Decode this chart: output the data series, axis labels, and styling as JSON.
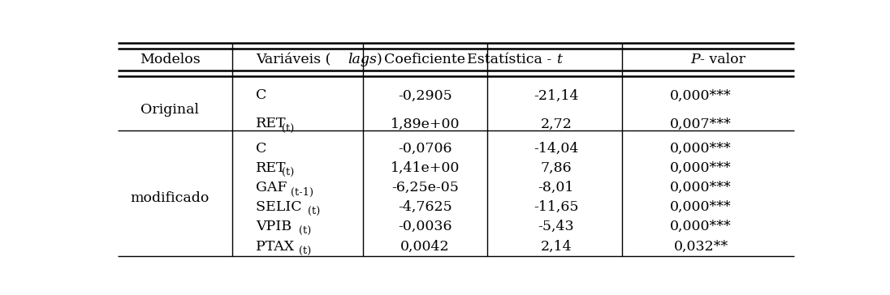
{
  "rows": [
    {
      "model": "Original",
      "span": 2,
      "variables": [
        "C",
        "RET_(t)"
      ],
      "coef": [
        "-0,2905",
        "1,89e+00"
      ],
      "tstat": [
        "-21,14",
        "2,72"
      ],
      "pval": [
        "0,000***",
        "0,007***"
      ]
    },
    {
      "model": "modificado",
      "span": 6,
      "variables": [
        "C",
        "RET_(t)",
        "GAF _(t-1)",
        "SELIC _(t)",
        "VPIB _(t)",
        "PTAX _(t)"
      ],
      "coef": [
        "-0,0706",
        "1,41e+00",
        "-6,25e-05",
        "-4,7625",
        "-0,0036",
        "0,0042"
      ],
      "tstat": [
        "-14,04",
        "7,86",
        "-8,01",
        "-11,65",
        "-5,43",
        "2,14"
      ],
      "pval": [
        "0,000***",
        "0,000***",
        "0,000***",
        "0,000***",
        "0,000***",
        "0,032**"
      ]
    }
  ],
  "figsize": [
    10.96,
    3.64
  ],
  "dpi": 100,
  "bg_color": "#ffffff",
  "font_size": 12.5,
  "header_font_size": 12.5
}
